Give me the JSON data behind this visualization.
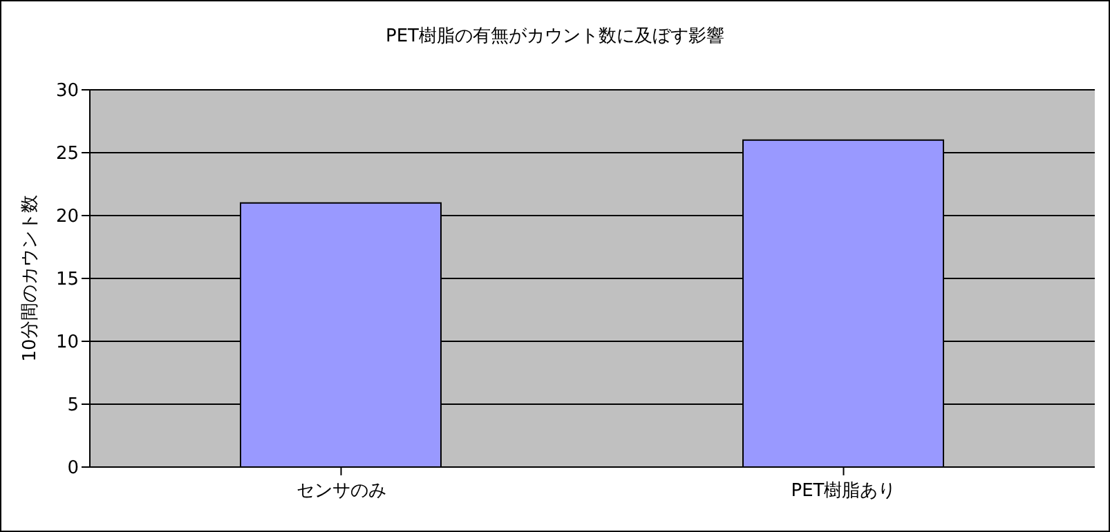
{
  "chart_data": {
    "type": "bar",
    "title": "PET樹脂の有無がカウント数に及ぼす影響",
    "ylabel": "10分間のカウント数",
    "categories": [
      "センサのみ",
      "PET樹脂あり"
    ],
    "values": [
      21,
      26
    ],
    "color": "#9999ff",
    "ylim": [
      0,
      30
    ],
    "yticks": [
      0,
      5,
      10,
      15,
      20,
      25,
      30
    ],
    "grid": "y"
  }
}
